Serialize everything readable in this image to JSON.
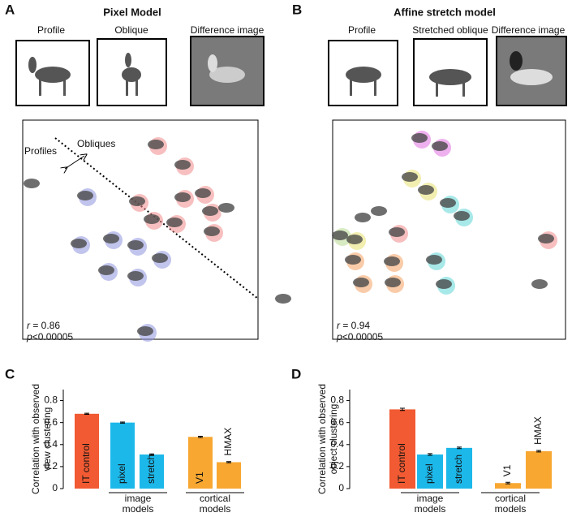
{
  "panels": [
    {
      "letter": "A",
      "title": "Pixel Model",
      "images": [
        "Profile",
        "Oblique",
        "Difference image"
      ],
      "annotations": [
        "Profiles",
        "Obliques"
      ],
      "r": [
        "r",
        "= 0.86"
      ],
      "p": [
        "p",
        "<0.00005"
      ]
    },
    {
      "letter": "B",
      "title": "Affine stretch model",
      "images": [
        "Profile",
        "Stretched oblique",
        "Difference image"
      ],
      "r": [
        "r",
        "= 0.94"
      ],
      "p": [
        "p",
        "<0.00005"
      ]
    }
  ],
  "chart_data": [
    {
      "type": "bar",
      "letter": "C",
      "ylabel": [
        "Correlation with observed",
        "view clustering"
      ],
      "categories": [
        "IT control",
        "pixel",
        "stretch",
        "V1",
        "HMAX"
      ],
      "values": [
        0.68,
        0.6,
        0.31,
        0.47,
        0.24
      ],
      "errors": [
        0.005,
        0.005,
        0.005,
        0.006,
        0.005
      ],
      "colors": [
        "#f15a32",
        "#1cb8ea",
        "#1cb8ea",
        "#f8a731",
        "#f8a731"
      ],
      "groups": [
        [
          "image",
          "models"
        ],
        [
          "cortical",
          "models"
        ]
      ],
      "ylim": [
        0,
        0.9
      ],
      "yticks": [
        0,
        0.2,
        0.4,
        0.6,
        0.8
      ]
    },
    {
      "type": "bar",
      "letter": "D",
      "ylabel": [
        "Correlation with observed",
        "object clustering"
      ],
      "categories": [
        "IT control",
        "pixel",
        "stretch",
        "V1",
        "HMAX"
      ],
      "values": [
        0.72,
        0.31,
        0.37,
        0.05,
        0.34
      ],
      "errors": [
        0.01,
        0.008,
        0.007,
        0.007,
        0.007
      ],
      "colors": [
        "#f15a32",
        "#1cb8ea",
        "#1cb8ea",
        "#f8a731",
        "#f8a731"
      ],
      "groups": [
        [
          "image",
          "models"
        ],
        [
          "cortical",
          "models"
        ]
      ],
      "ylim": [
        0,
        0.9
      ],
      "yticks": [
        0,
        0.2,
        0.4,
        0.6,
        0.8
      ]
    }
  ]
}
